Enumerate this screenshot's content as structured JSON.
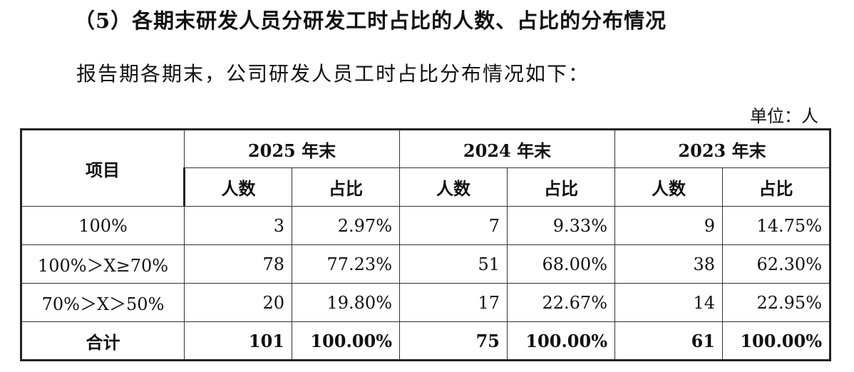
{
  "heading": "（5）各期末研发人员分研发工时占比的人数、占比的分布情况",
  "intro": "报告期各期末，公司研发人员工时占比分布情况如下：",
  "unit": "单位：人",
  "table": {
    "item_header": "项目",
    "periods": [
      "2025 年末",
      "2024 年末",
      "2023 年末"
    ],
    "sub_headers": {
      "count": "人数",
      "ratio": "占比"
    },
    "rows": [
      {
        "label": "100%",
        "values": [
          "3",
          "2.97%",
          "7",
          "9.33%",
          "9",
          "14.75%"
        ]
      },
      {
        "label": "100%＞X≥70%",
        "values": [
          "78",
          "77.23%",
          "51",
          "68.00%",
          "38",
          "62.30%"
        ]
      },
      {
        "label": "70%＞X＞50%",
        "values": [
          "20",
          "19.80%",
          "17",
          "22.67%",
          "14",
          "22.95%"
        ]
      }
    ],
    "total": {
      "label": "合计",
      "values": [
        "101",
        "100.00%",
        "75",
        "100.00%",
        "61",
        "100.00%"
      ]
    }
  }
}
